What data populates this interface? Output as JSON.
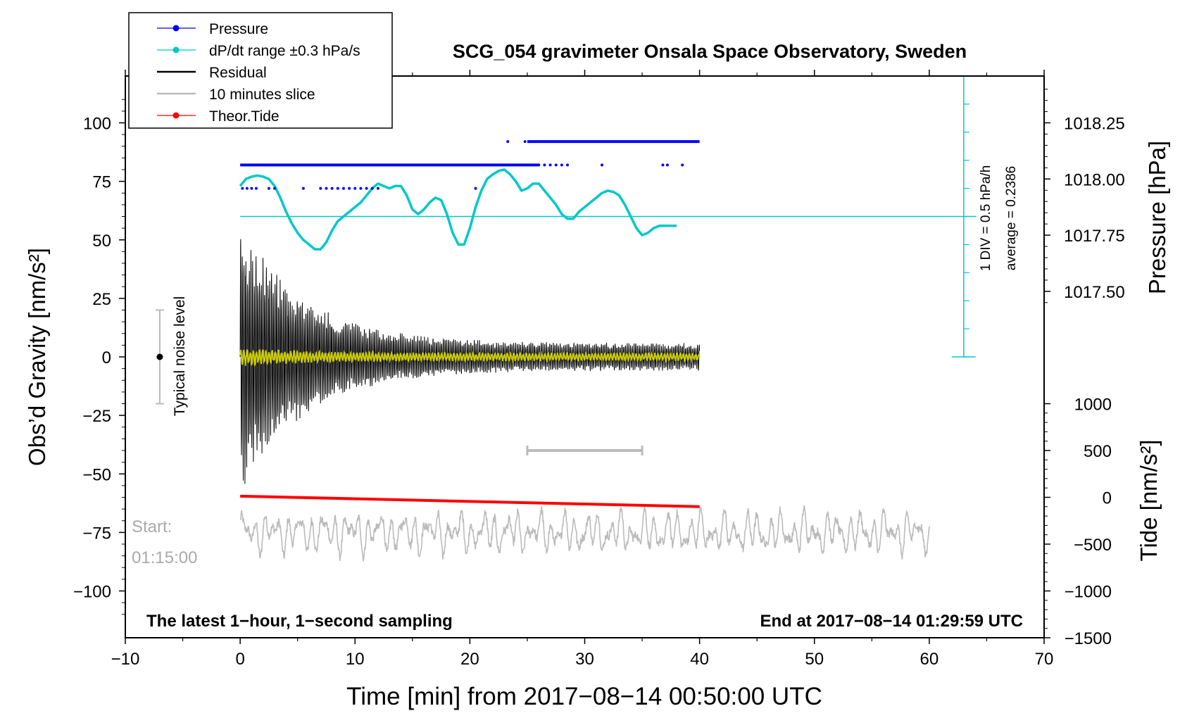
{
  "chart_data": {
    "type": "line",
    "title": "SCG_054 gravimeter Onsala Space Observatory, Sweden",
    "xlabel": "Time [min] from 2017−08−14 00:50:00 UTC",
    "ylabel_left": "Obs’d Gravity [nm/s²]",
    "ylabel_right_top": "Pressure [hPa]",
    "ylabel_right_bottom": "Tide [nm/s²]",
    "xlim": [
      -10,
      70
    ],
    "ylim_left": [
      -120,
      120
    ],
    "x_ticks": [
      "−10",
      "0",
      "10",
      "20",
      "30",
      "40",
      "50",
      "60",
      "70"
    ],
    "y_ticks_left": [
      "100",
      "75",
      "50",
      "25",
      "0",
      "−25",
      "−50",
      "−75",
      "−100"
    ],
    "pressure_axis": {
      "ticks": [
        "1018.25",
        "1018.00",
        "1017.75",
        "1017.50"
      ],
      "values": [
        1018.25,
        1018.0,
        1017.75,
        1017.5
      ],
      "left_unit_at_1018_25": 100,
      "left_units_per_0_25_hPa": 24
    },
    "tide_axis": {
      "ticks": [
        "1000",
        "500",
        "0",
        "−500",
        "−1000",
        "−1500"
      ],
      "values": [
        1000,
        500,
        0,
        -500,
        -1000,
        -1500
      ],
      "left_unit_at_0": -60,
      "left_units_per_500": 20
    },
    "legend": [
      {
        "label": "Pressure",
        "color": "#0000ff",
        "marker": true
      },
      {
        "label": "dP/dt range ±0.3 hPa/s",
        "color": "#00c8c8",
        "marker": true
      },
      {
        "label": "Residual",
        "color": "#000000",
        "marker": false
      },
      {
        "label": "10 minutes slice",
        "color": "#bbbbbb",
        "marker": false
      },
      {
        "label": "Theor.Tide",
        "color": "#ff0000",
        "marker": true
      }
    ],
    "series": [
      {
        "name": "Pressure",
        "color": "#0000ff",
        "segments": [
          {
            "x_start": 0,
            "x_end": 26,
            "y": 82
          },
          {
            "x_start": 25,
            "x_end": 40,
            "y": 92
          }
        ],
        "scatter_x": [
          0.2,
          0.6,
          1.0,
          1.4,
          2.5,
          3.0,
          5.5,
          7.0,
          7.5,
          8.0,
          8.5,
          9.0,
          9.5,
          10.0,
          10.5,
          11.0,
          11.5,
          12.0,
          20.5
        ],
        "scatter_y": 72,
        "mid_x": [
          26.0,
          26.5,
          27.0,
          27.5,
          28.0,
          28.5,
          31.5,
          36.8,
          37.2,
          38.5
        ],
        "mid_y": 82,
        "high_x": [
          23.3,
          24.8
        ],
        "high_y": 92
      },
      {
        "name": "dP/dt range ±0.3 hPa/s",
        "color": "#00c8c8",
        "x": [
          0,
          0.5,
          1,
          1.5,
          2,
          2.5,
          3,
          3.5,
          4,
          4.5,
          5,
          5.5,
          6,
          6.5,
          7,
          7.5,
          8,
          8.5,
          9,
          9.5,
          10,
          10.5,
          11,
          11.5,
          12,
          12.5,
          13,
          13.5,
          14,
          14.5,
          15,
          15.5,
          16,
          16.5,
          17,
          17.5,
          18,
          18.5,
          19,
          19.5,
          20,
          20.5,
          21,
          21.5,
          22,
          22.5,
          23,
          23.5,
          24,
          24.5,
          25,
          25.5,
          26,
          26.5,
          27,
          27.5,
          28,
          28.5,
          29,
          29.5,
          30,
          30.5,
          31,
          31.5,
          32,
          32.5,
          33,
          33.5,
          34,
          34.5,
          35,
          35.5,
          36,
          36.5,
          37,
          37.5,
          38
        ],
        "y": [
          73,
          76,
          77,
          77.5,
          77,
          76,
          73,
          68,
          62,
          57,
          53,
          50,
          48,
          46,
          46,
          49,
          54,
          58,
          60,
          62,
          64,
          66,
          69,
          72,
          74,
          73,
          72,
          73,
          73,
          69,
          63,
          61,
          63,
          66,
          68,
          67,
          61,
          53,
          48,
          48,
          55,
          64,
          71,
          76,
          78,
          79.5,
          80,
          78,
          75,
          71,
          72,
          74,
          74,
          71,
          68,
          65,
          61,
          59,
          59,
          62,
          64,
          66,
          68,
          70,
          71,
          70.5,
          69,
          65,
          60,
          55,
          52,
          53,
          55,
          56,
          56,
          56,
          56
        ]
      },
      {
        "name": "Residual",
        "color": "#000000",
        "description": "damped oscillation around 0, amplitude about 60 decaying to about 6 over 0–40 min",
        "x_range": [
          0,
          40
        ],
        "amplitude_start": 60,
        "amplitude_end": 6
      },
      {
        "name": "Residual (smoothed)",
        "color": "#cccc00",
        "x_range": [
          0,
          40
        ],
        "amplitude": 3
      },
      {
        "name": "10 minutes slice",
        "color": "#bbbbbb",
        "x_range": [
          0,
          60
        ],
        "y_center": -75,
        "amplitude": 8
      },
      {
        "name": "Theor.Tide",
        "color": "#ff0000",
        "x": [
          0,
          40
        ],
        "y": [
          -59.5,
          -64
        ]
      }
    ],
    "reference_lines": [
      {
        "name": "pressure average",
        "y": 60,
        "color": "#00c8c8"
      }
    ],
    "annotations": {
      "noise_level_label": "Typical noise level",
      "noise_level_range": [
        -20,
        20
      ],
      "noise_level_x": -7,
      "ten_minute_marker_x": [
        25,
        35
      ],
      "ten_minute_marker_y": -40,
      "start_label": "Start:",
      "start_time": "01:15:00",
      "div_label": "1 DIV = 0.5 hPa/h",
      "average_label": "average = 0.2386",
      "scale_bar_x": 63,
      "scale_bar_y_range": [
        0,
        120
      ],
      "bottom_left_note": "The latest 1−hour, 1−second sampling",
      "bottom_right_note": "End at 2017−08−14 01:29:59 UTC"
    }
  }
}
